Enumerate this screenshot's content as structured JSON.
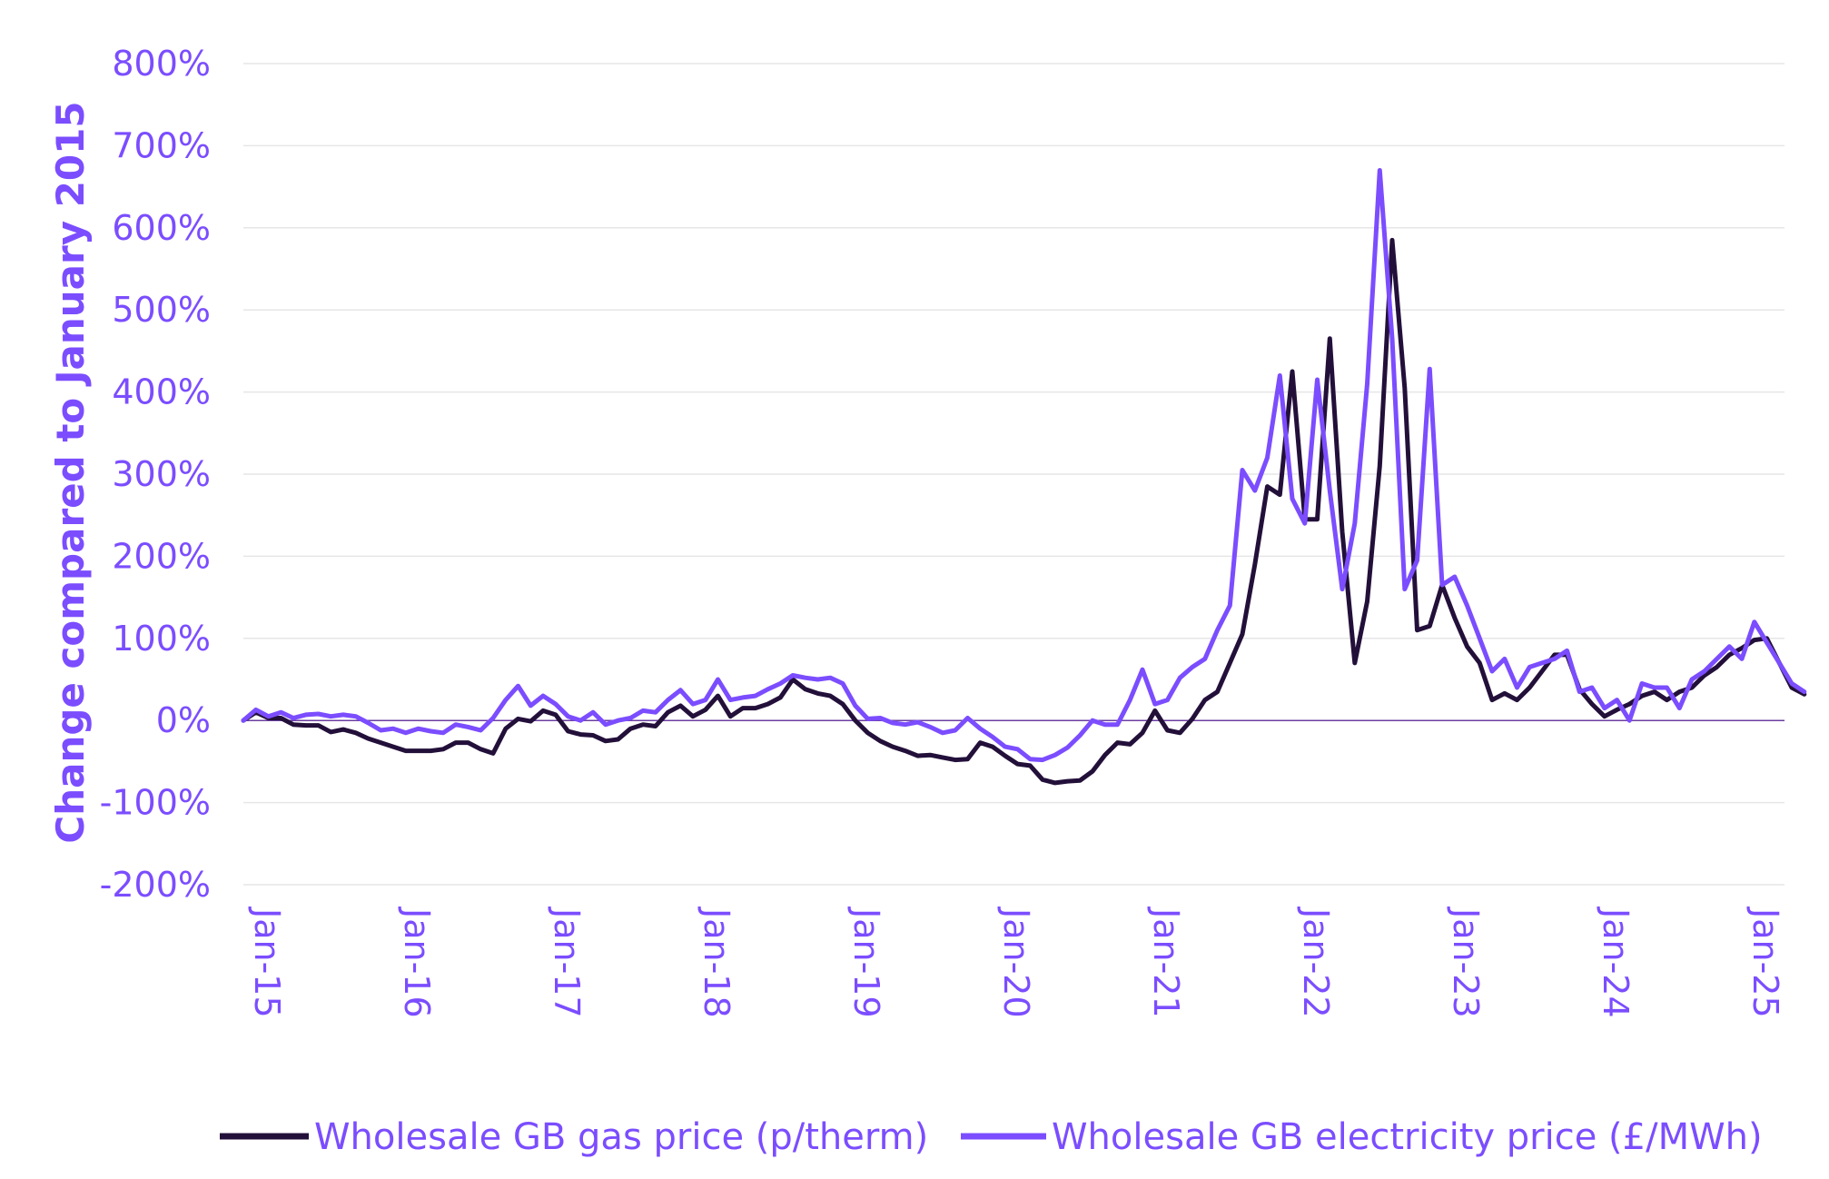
{
  "chart_data": {
    "type": "line",
    "title": "",
    "xlabel": "",
    "ylabel": "Change compared to January 2015",
    "ylim": [
      -200,
      800
    ],
    "yticks": [
      -200,
      -100,
      0,
      100,
      200,
      300,
      400,
      500,
      600,
      700,
      800
    ],
    "ytick_labels": [
      "-200%",
      "-100%",
      "0%",
      "100%",
      "200%",
      "300%",
      "400%",
      "500%",
      "600%",
      "700%",
      "800%"
    ],
    "xticks": [
      "Jan-15",
      "Jan-16",
      "Jan-17",
      "Jan-18",
      "Jan-19",
      "Jan-20",
      "Jan-21",
      "Jan-22",
      "Jan-23",
      "Jan-24",
      "Jan-25"
    ],
    "x_start": "Jan-15",
    "x_end": "Jun-25",
    "grid": true,
    "legend": "bottom",
    "series": [
      {
        "name": "Wholesale GB gas price (p/therm)",
        "color": "#23103a",
        "values": [
          0,
          10,
          3,
          3,
          -5,
          -6,
          -6,
          -14,
          -11,
          -15,
          -22,
          -27,
          -32,
          -37,
          -37,
          -37,
          -35,
          -27,
          -27,
          -35,
          -40,
          -10,
          2,
          -1,
          12,
          7,
          -13,
          -17,
          -18,
          -25,
          -23,
          -10,
          -5,
          -7,
          10,
          18,
          5,
          13,
          30,
          5,
          15,
          15,
          20,
          28,
          50,
          38,
          33,
          30,
          20,
          0,
          -15,
          -25,
          -32,
          -37,
          -43,
          -42,
          -45,
          -48,
          -47,
          -27,
          -32,
          -43,
          -53,
          -55,
          -72,
          -76,
          -74,
          -73,
          -62,
          -42,
          -27,
          -29,
          -15,
          12,
          -12,
          -15,
          2,
          25,
          35,
          70,
          105,
          190,
          285,
          275,
          425,
          245,
          245,
          465,
          230,
          70,
          145,
          310,
          585,
          405,
          110,
          115,
          165,
          125,
          90,
          70,
          25,
          33,
          25,
          40,
          60,
          80,
          80,
          38,
          20,
          5,
          13,
          20,
          30,
          35,
          25,
          35,
          40,
          55,
          65,
          80,
          88,
          98,
          100,
          70,
          40,
          32
        ]
      },
      {
        "name": "Wholesale GB electricity price (£/MWh)",
        "color": "#7b4dff",
        "values": [
          0,
          13,
          5,
          10,
          3,
          7,
          8,
          5,
          7,
          5,
          -3,
          -12,
          -10,
          -15,
          -10,
          -13,
          -15,
          -5,
          -8,
          -12,
          3,
          25,
          42,
          18,
          30,
          20,
          5,
          0,
          10,
          -5,
          0,
          3,
          12,
          10,
          25,
          37,
          20,
          25,
          50,
          25,
          28,
          30,
          38,
          45,
          55,
          52,
          50,
          52,
          45,
          18,
          2,
          3,
          -3,
          -5,
          -2,
          -8,
          -15,
          -12,
          3,
          -10,
          -20,
          -32,
          -35,
          -47,
          -48,
          -42,
          -33,
          -18,
          0,
          -5,
          -5,
          25,
          62,
          20,
          25,
          52,
          65,
          75,
          110,
          140,
          305,
          280,
          320,
          420,
          270,
          240,
          415,
          280,
          160,
          240,
          410,
          670,
          465,
          160,
          195,
          428,
          165,
          175,
          140,
          100,
          60,
          75,
          40,
          65,
          70,
          75,
          85,
          35,
          40,
          15,
          25,
          0,
          45,
          40,
          40,
          15,
          50,
          60,
          75,
          90,
          75,
          120,
          95,
          70,
          45,
          35
        ]
      }
    ]
  }
}
